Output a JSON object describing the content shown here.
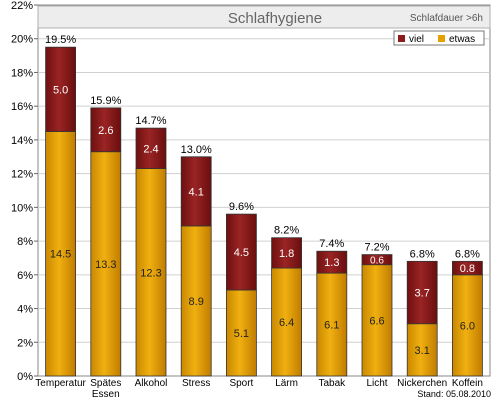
{
  "chart_data": {
    "type": "bar",
    "stacked": true,
    "title": "Schlafhygiene",
    "subtitle": "Schlafdauer >6h",
    "footer": "Stand: 05.08.2010",
    "categories": [
      "Temperatur",
      "Spätes Essen",
      "Alkohol",
      "Stress",
      "Sport",
      "Lärm",
      "Tabak",
      "Licht",
      "Nickerchen",
      "Koffein"
    ],
    "series": [
      {
        "name": "etwas",
        "color": "#e6a000",
        "values": [
          14.5,
          13.3,
          12.3,
          8.9,
          5.1,
          6.4,
          6.1,
          6.6,
          3.1,
          6.0
        ]
      },
      {
        "name": "viel",
        "color": "#8c1c1c",
        "values": [
          5.0,
          2.6,
          2.4,
          4.1,
          4.5,
          1.8,
          1.3,
          0.6,
          3.7,
          0.8
        ]
      }
    ],
    "totals": [
      "19.5%",
      "15.9%",
      "14.7%",
      "13.0%",
      "9.6%",
      "8.2%",
      "7.4%",
      "7.2%",
      "6.8%",
      "6.8%"
    ],
    "ylim": [
      0,
      22
    ],
    "yticks": [
      "0%",
      "2%",
      "4%",
      "6%",
      "8%",
      "10%",
      "12%",
      "14%",
      "16%",
      "18%",
      "20%",
      "22%"
    ],
    "ytick_values": [
      0,
      2,
      4,
      6,
      8,
      10,
      12,
      14,
      16,
      18,
      20,
      22
    ],
    "legend": [
      {
        "label": "viel",
        "color": "#8c1c1c"
      },
      {
        "label": "etwas",
        "color": "#e6a000"
      }
    ],
    "legend_position": "top-right",
    "grid": true
  }
}
